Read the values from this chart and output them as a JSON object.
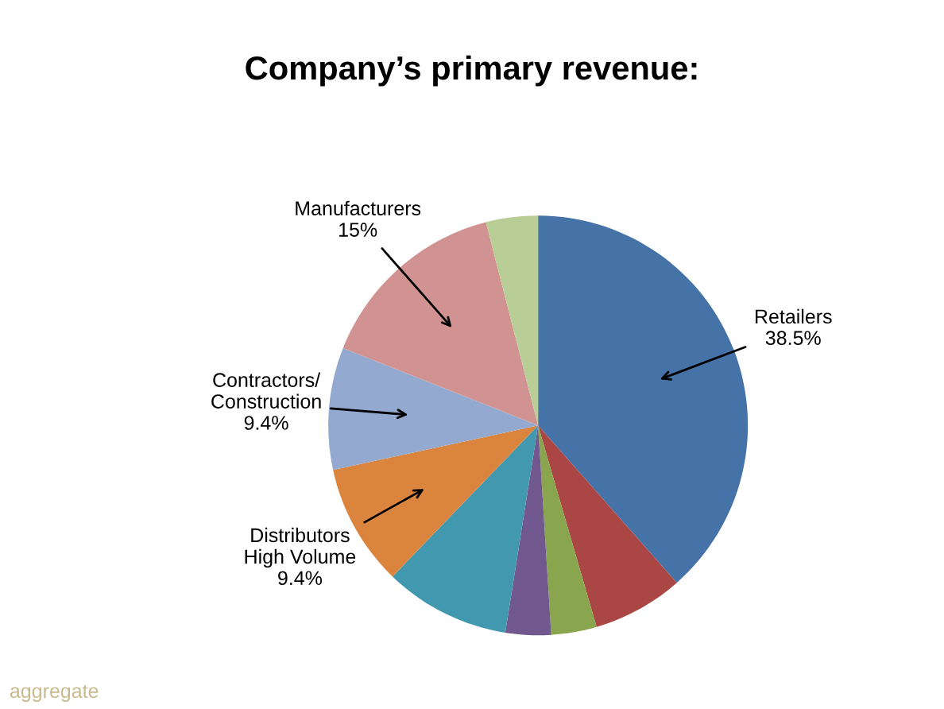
{
  "chart_data": {
    "type": "pie",
    "title": "Company’s primary revenue:",
    "categories": [
      "Retailers",
      null,
      null,
      null,
      null,
      "Distributors\nHigh Volume",
      "Contractors/\nConstruction",
      "Manufacturers",
      null
    ],
    "values": [
      38.5,
      7,
      3.5,
      3.5,
      9.7,
      9.4,
      9.4,
      15,
      4
    ],
    "value_labels": [
      "38.5%",
      null,
      null,
      null,
      null,
      "9.4%",
      "9.4%",
      "15%",
      null
    ],
    "colors": [
      "#4572a7",
      "#aa4643",
      "#89a54e",
      "#71588f",
      "#4198af",
      "#db843d",
      "#93a9cf",
      "#d19392",
      "#b9cd96"
    ],
    "annotations": [
      "aggregate"
    ],
    "legend": false
  }
}
